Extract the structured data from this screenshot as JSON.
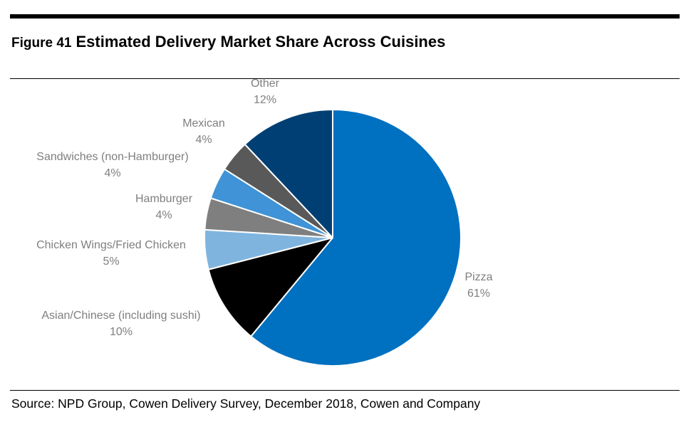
{
  "figure": {
    "number": "Figure 41",
    "title": "Estimated Delivery Market Share Across Cuisines"
  },
  "source": "Source: NPD Group, Cowen Delivery Survey, December 2018, Cowen and Company",
  "chart_data": {
    "type": "pie",
    "title": "Estimated Delivery Market Share Across Cuisines",
    "slices": [
      {
        "label": "Pizza",
        "value": 61,
        "display": "61%",
        "color": "#0070c0"
      },
      {
        "label": "Asian/Chinese (including sushi)",
        "value": 10,
        "display": "10%",
        "color": "#000000"
      },
      {
        "label": "Chicken Wings/Fried Chicken",
        "value": 5,
        "display": "5%",
        "color": "#7fb4de"
      },
      {
        "label": "Hamburger",
        "value": 4,
        "display": "4%",
        "color": "#7f7f7f"
      },
      {
        "label": "Sandwiches (non-Hamburger)",
        "value": 4,
        "display": "4%",
        "color": "#3f93d6"
      },
      {
        "label": "Mexican",
        "value": 4,
        "display": "4%",
        "color": "#595959"
      },
      {
        "label": "Other",
        "value": 12,
        "display": "12%",
        "color": "#003f74"
      }
    ],
    "start": "12 o'clock",
    "direction": "clockwise",
    "label_style": "outside, category name above percentage"
  }
}
